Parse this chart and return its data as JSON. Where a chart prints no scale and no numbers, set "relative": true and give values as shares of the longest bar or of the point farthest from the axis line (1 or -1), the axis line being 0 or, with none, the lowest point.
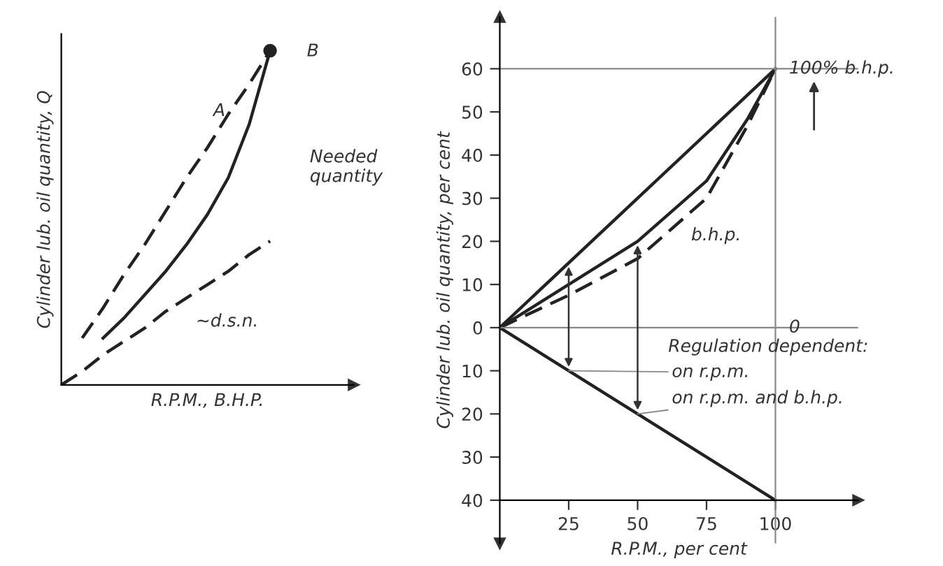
{
  "chart_data": [
    {
      "type": "line",
      "relative": true,
      "xlabel": "R.P.M., B.H.P.",
      "ylabel": "Cylinder lub. oil quantity, Q",
      "grid": false,
      "legend": false,
      "categories": [
        null,
        null,
        null,
        null,
        null,
        null,
        null,
        null,
        null,
        null,
        null
      ],
      "series": [
        {
          "color": "#222222",
          "line_style": "dashed",
          "values": [
            null,
            0.14,
            0.23,
            0.33,
            0.42,
            0.52,
            0.62,
            0.71,
            0.81,
            0.9,
            1
          ]
        },
        {
          "color": "#222222",
          "line_style": "solid",
          "values": [
            null,
            null,
            0.14,
            0.2,
            0.27,
            0.34,
            0.42,
            0.51,
            0.62,
            0.78,
            1
          ]
        },
        {
          "color": "#222222",
          "line_style": "dashed",
          "values": [
            0,
            0.04,
            0.09,
            0.13,
            0.17,
            0.22,
            0.26,
            0.3,
            0.34,
            0.39,
            0.43
          ]
        }
      ],
      "annotations": [
        "A",
        "B",
        "Needed\nquantity",
        "~d.s.n."
      ]
    },
    {
      "type": "line",
      "xlabel": "R.P.M., per cent",
      "ylabel": "Cylinder lub. oil quantity, per cent",
      "grid": false,
      "legend": false,
      "xlim": [
        0,
        130
      ],
      "ylim": [
        -50,
        72
      ],
      "xticks": [
        25,
        50,
        75,
        100
      ],
      "yticks": [
        {
          "value": -40,
          "label": "40"
        },
        {
          "value": -30,
          "label": "30"
        },
        {
          "value": -20,
          "label": "20"
        },
        {
          "value": -10,
          "label": "10"
        },
        0,
        10,
        20,
        30,
        40,
        50,
        60
      ],
      "series": [
        {
          "color": "#222222",
          "line_style": "solid",
          "x": [
            0,
            100
          ],
          "values": [
            0,
            60
          ]
        },
        {
          "color": "#222222",
          "line_style": "solid",
          "x": [
            0,
            100
          ],
          "values": [
            0,
            -40
          ]
        },
        {
          "color": "#222222",
          "line_style": "solid",
          "x": [
            0,
            25,
            50,
            75,
            90,
            100
          ],
          "values": [
            0,
            10,
            20,
            34,
            48.5,
            60
          ]
        },
        {
          "color": "#222222",
          "line_style": "dashed",
          "x": [
            0,
            25,
            50,
            75,
            90,
            100
          ],
          "values": [
            0,
            7.5,
            16,
            30,
            47,
            60
          ]
        }
      ],
      "ref_lines": [
        {
          "axis": "y",
          "value": 60,
          "color": "#888888"
        },
        {
          "axis": "y",
          "value": 0,
          "color": "#888888"
        },
        {
          "axis": "x",
          "value": 100,
          "color": "#888888"
        }
      ],
      "annotations": [
        {
          "text": "100% b.h.p.",
          "x": 100,
          "y": 60
        },
        {
          "text": "0",
          "x": 100,
          "y": 0
        },
        {
          "text": "b.h.p.",
          "x": 68,
          "y": 26
        },
        "Regulation dependent:",
        {
          "text": "on r.p.m.",
          "x": 25,
          "y": -10
        },
        {
          "text": "on r.p.m. and b.h.p.",
          "x": 50,
          "y": -20
        }
      ]
    }
  ]
}
